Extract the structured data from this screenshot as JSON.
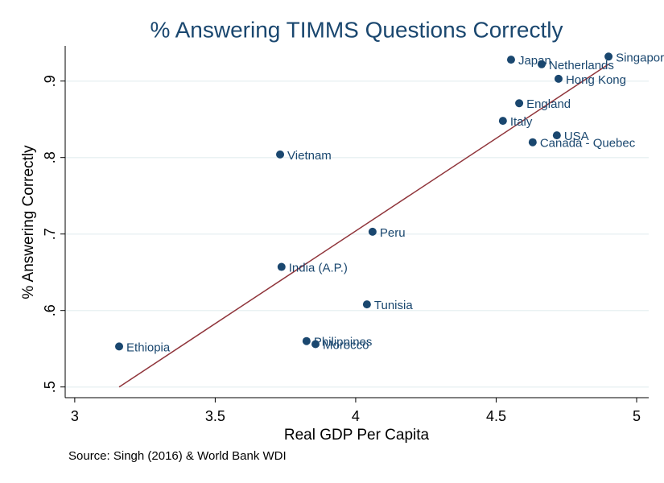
{
  "chart_data": {
    "type": "scatter",
    "title": "% Answering TIMMS Questions Correctly",
    "x_label": "Real GDP Per Capita",
    "y_label": "% Answering Correctly",
    "source": "Source: Singh (2016) & World Bank WDI",
    "color": "#1a476f",
    "grid": true,
    "labels": [
      "Singapore",
      "Japan",
      "Netherlands",
      "Hong Kong",
      "England",
      "Italy",
      "USA",
      "Canada - Quebec",
      "Vietnam",
      "Peru",
      "India (A.P.)",
      "Tunisia",
      "Philippines",
      "Morocco",
      "Ethiopia"
    ],
    "x": [
      4.9,
      4.553,
      4.662,
      4.722,
      4.582,
      4.524,
      4.716,
      4.63,
      3.731,
      4.06,
      3.736,
      4.04,
      3.825,
      3.857,
      3.158
    ],
    "y": [
      0.932,
      0.928,
      0.922,
      0.903,
      0.871,
      0.848,
      0.829,
      0.82,
      0.804,
      0.703,
      0.657,
      0.608,
      0.56,
      0.556,
      0.553
    ],
    "fit": {
      "color": "#90353b",
      "x": [
        3.158,
        4.9
      ],
      "y": [
        0.5,
        0.922
      ]
    },
    "xlim": [
      2.966,
      5.043
    ],
    "ylim": [
      0.486,
      0.946
    ],
    "xticks": [
      3,
      3.5,
      4,
      4.5,
      5
    ],
    "yticks": [
      {
        "value": 0.5,
        "label": ".5"
      },
      {
        "value": 0.6,
        "label": ".6"
      },
      {
        "value": 0.7,
        "label": ".7"
      },
      {
        "value": 0.8,
        "label": ".8"
      },
      {
        "value": 0.9,
        "label": ".9"
      }
    ]
  }
}
